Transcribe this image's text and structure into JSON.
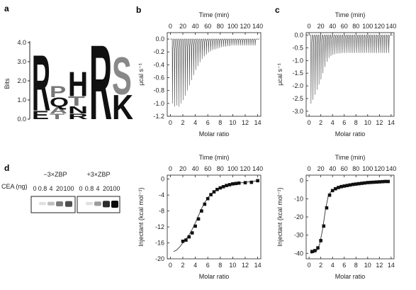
{
  "panels": {
    "a": {
      "label": "a",
      "ylabel": "Bits",
      "yticks": [
        "0.0",
        "1.0",
        "2.0",
        "3.0",
        "4.0"
      ],
      "positions": [
        [
          {
            "letter": "R",
            "bits": 3.0,
            "color": "#111111"
          },
          {
            "letter": "E",
            "bits": 0.45,
            "color": "#111111"
          }
        ],
        [
          {
            "letter": "P",
            "bits": 0.6,
            "color": "#777777"
          },
          {
            "letter": "Q",
            "bits": 0.5,
            "color": "#111111"
          },
          {
            "letter": "A",
            "bits": 0.35,
            "color": "#777777"
          },
          {
            "letter": "T",
            "bits": 0.3,
            "color": "#777777"
          }
        ],
        [
          {
            "letter": "H",
            "bits": 1.3,
            "color": "#111111"
          },
          {
            "letter": "T",
            "bits": 0.5,
            "color": "#777777"
          },
          {
            "letter": "N",
            "bits": 0.4,
            "color": "#111111"
          },
          {
            "letter": "R",
            "bits": 0.3,
            "color": "#111111"
          }
        ],
        [
          {
            "letter": "R",
            "bits": 4.0,
            "color": "#111111"
          }
        ],
        [
          {
            "letter": "S",
            "bits": 2.0,
            "color": "#888888"
          },
          {
            "letter": "K",
            "bits": 1.3,
            "color": "#111111"
          }
        ]
      ]
    },
    "d": {
      "label": "d",
      "group1": "−3×ZBP",
      "group2": "+3×ZBP",
      "row_label": "CEA (ng)",
      "lanes": [
        "0",
        "0.8",
        "4",
        "20",
        "100"
      ],
      "band_intensity_group1": [
        0.0,
        0.05,
        0.2,
        0.5,
        0.7
      ],
      "band_intensity_group2": [
        0.0,
        0.05,
        0.35,
        0.85,
        1.0
      ]
    }
  },
  "chart_data": [
    {
      "id": "b-top",
      "panel_label": "b",
      "type": "line",
      "top_axis_label": "Time (min)",
      "top_ticks": [
        0,
        20,
        40,
        60,
        80,
        100,
        120,
        140
      ],
      "top_lim": [
        -5,
        145
      ],
      "xlabel": "Molar ratio",
      "ylabel": "µcal s⁻¹",
      "xlim": [
        -0.5,
        14.5
      ],
      "ylim": [
        -1.2,
        0.1
      ],
      "xticks": [
        0,
        2,
        4,
        6,
        8,
        10,
        12,
        14
      ],
      "yticks": [
        0.0,
        -0.2,
        -0.4,
        -0.6,
        -0.8,
        -1.0,
        -1.2
      ],
      "ytick_labels": [
        "0.0",
        "-0.2",
        "-0.4",
        "-0.6",
        "-0.8",
        "-1.0",
        "-1.2"
      ],
      "baseline": 0.0,
      "n_injections": 40,
      "time_start": 3,
      "time_step": 3.4,
      "peak_depths": [
        -1.0,
        -1.05,
        -1.03,
        -1.05,
        -1.0,
        -0.95,
        -0.88,
        -0.8,
        -0.72,
        -0.64,
        -0.56,
        -0.48,
        -0.42,
        -0.36,
        -0.31,
        -0.27,
        -0.24,
        -0.21,
        -0.19,
        -0.17,
        -0.16,
        -0.15,
        -0.14,
        -0.13,
        -0.12,
        -0.12,
        -0.11,
        -0.11,
        -0.1,
        -0.1,
        -0.1,
        -0.1,
        -0.1,
        -0.1,
        -0.1,
        -0.1,
        -0.1,
        -0.1,
        -0.1,
        -0.1
      ]
    },
    {
      "id": "c-top",
      "panel_label": "c",
      "type": "line",
      "top_axis_label": "Time (min)",
      "top_ticks": [
        0,
        20,
        40,
        60,
        80,
        100,
        120,
        140
      ],
      "top_lim": [
        -5,
        145
      ],
      "xlabel": "Molar ratio",
      "ylabel": "µcal s⁻¹",
      "xlim": [
        -0.5,
        14.5
      ],
      "ylim": [
        -3.2,
        0.1
      ],
      "xticks": [
        0,
        2,
        4,
        6,
        8,
        10,
        12,
        14
      ],
      "yticks": [
        0.0,
        -0.5,
        -1.0,
        -1.5,
        -2.0,
        -2.5,
        -3.0
      ],
      "ytick_labels": [
        "0.0",
        "-0.5",
        "-1.0",
        "-1.5",
        "-2.0",
        "-2.5",
        "-3.0"
      ],
      "baseline": 0.0,
      "n_injections": 40,
      "time_start": 3,
      "time_step": 3.4,
      "peak_depths": [
        -2.7,
        -2.55,
        -2.35,
        -2.15,
        -1.95,
        -1.75,
        -1.5,
        -1.25,
        -1.05,
        -0.9,
        -0.82,
        -0.78,
        -0.75,
        -0.73,
        -0.72,
        -0.71,
        -0.7,
        -0.7,
        -0.7,
        -0.7,
        -0.7,
        -0.7,
        -0.7,
        -0.7,
        -0.7,
        -0.7,
        -0.7,
        -0.7,
        -0.7,
        -0.7,
        -0.7,
        -0.7,
        -0.7,
        -0.7,
        -0.7,
        -0.7,
        -0.7,
        -0.7,
        -0.7,
        -0.7
      ]
    },
    {
      "id": "b-bottom",
      "panel_label": "",
      "type": "scatter",
      "top_axis_label": "Time (min)",
      "top_ticks": [
        0,
        20,
        40,
        60,
        80,
        100,
        120,
        140
      ],
      "top_lim": [
        -5,
        145
      ],
      "xlabel": "Molar ratio",
      "ylabel": "Injectant (kcal mol⁻¹)",
      "xlim": [
        -0.5,
        14.5
      ],
      "ylim": [
        -20,
        1
      ],
      "xticks": [
        0,
        2,
        4,
        6,
        8,
        10,
        12,
        14
      ],
      "yticks": [
        0,
        -4,
        -8,
        -12,
        -16,
        -20
      ],
      "ytick_labels": [
        "0",
        "-4",
        "-8",
        "-12",
        "-16",
        "-20"
      ],
      "points": {
        "x": [
          2.0,
          2.5,
          3.0,
          3.5,
          4.0,
          4.5,
          5.0,
          5.5,
          6.0,
          6.5,
          7.0,
          7.5,
          8.0,
          8.5,
          9.0,
          9.5,
          10.0,
          10.5,
          11.0,
          12.0,
          13.0,
          14.0
        ],
        "y": [
          -15.6,
          -15.3,
          -14.5,
          -13.5,
          -11.8,
          -10.0,
          -8.0,
          -6.3,
          -4.9,
          -3.9,
          -3.2,
          -2.6,
          -2.2,
          -1.9,
          -1.6,
          -1.4,
          -1.2,
          -1.1,
          -1.0,
          -0.9,
          -0.8,
          -0.4
        ]
      },
      "fit": {
        "x": [
          0.5,
          1.0,
          1.5,
          2.0,
          2.5,
          3.0,
          3.5,
          4.0,
          4.5,
          5.0,
          5.5,
          6.0,
          6.5,
          7.0,
          7.5,
          8.0,
          9.0,
          10.0,
          11.0,
          12.0,
          13.0,
          14.0
        ],
        "y": [
          -18.2,
          -17.8,
          -17.0,
          -16.0,
          -15.0,
          -14.0,
          -12.6,
          -11.0,
          -9.2,
          -7.4,
          -5.9,
          -4.7,
          -3.8,
          -3.1,
          -2.6,
          -2.2,
          -1.6,
          -1.2,
          -1.0,
          -0.8,
          -0.6,
          -0.4
        ]
      }
    },
    {
      "id": "c-bottom",
      "panel_label": "",
      "type": "scatter",
      "top_axis_label": "Time (min)",
      "top_ticks": [
        0,
        20,
        40,
        60,
        80,
        100,
        120,
        140
      ],
      "top_lim": [
        -5,
        145
      ],
      "xlabel": "Molar ratio",
      "ylabel": "Injectant (kcal mol⁻¹)",
      "xlim": [
        -0.5,
        14.5
      ],
      "ylim": [
        -43,
        3
      ],
      "xticks": [
        0,
        2,
        4,
        6,
        8,
        10,
        12,
        14
      ],
      "yticks": [
        0,
        -10,
        -20,
        -30,
        -40
      ],
      "ytick_labels": [
        "0",
        "-10",
        "-20",
        "-30",
        "-40"
      ],
      "points": {
        "x": [
          0.5,
          1.0,
          1.5,
          2.0,
          2.5,
          3.0,
          3.5,
          4.0,
          4.5,
          5.0,
          5.5,
          6.0,
          6.5,
          7.0,
          7.5,
          8.0,
          8.5,
          9.0,
          9.5,
          10.0,
          10.5,
          11.0,
          11.5,
          12.0,
          12.5,
          13.0,
          13.5
        ],
        "y": [
          -39,
          -38.5,
          -37,
          -33,
          -25,
          -15,
          -8,
          -5.5,
          -4.5,
          -3.8,
          -3.3,
          -3.0,
          -2.7,
          -2.4,
          -2.1,
          -1.9,
          -1.7,
          -1.5,
          -1.3,
          -1.1,
          -1.0,
          -0.9,
          -0.8,
          -0.7,
          -0.6,
          -0.5,
          -0.5
        ]
      },
      "fit": {
        "x": [
          0.3,
          0.8,
          1.3,
          1.8,
          2.3,
          2.8,
          3.3,
          3.8,
          4.3,
          5.0,
          6.0,
          7.0,
          8.0,
          9.0,
          10.0,
          11.0,
          12.0,
          13.0,
          13.5
        ],
        "y": [
          -40,
          -39.6,
          -38.5,
          -35,
          -27,
          -16,
          -8,
          -5.8,
          -5.0,
          -4.4,
          -3.6,
          -3.0,
          -2.5,
          -2.0,
          -1.6,
          -1.2,
          -1.0,
          -0.8,
          -0.7
        ]
      }
    }
  ]
}
